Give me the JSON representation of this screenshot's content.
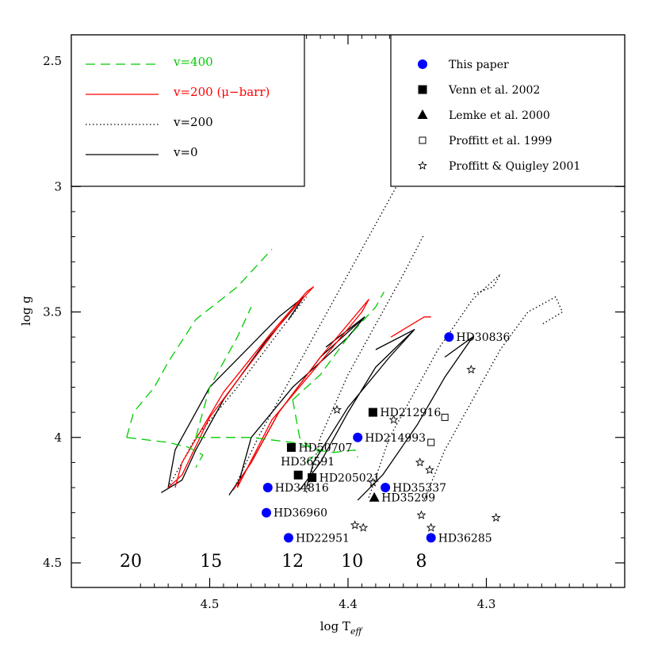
{
  "chart_data": {
    "type": "scatter",
    "xlabel": "log T",
    "xlabel_sub": "eff",
    "ylabel": "log g",
    "xlim": [
      4.6,
      4.2
    ],
    "ylim": [
      4.6,
      2.1
    ],
    "x_reversed": true,
    "y_reversed": true,
    "xticks": [
      4.5,
      4.4,
      4.3
    ],
    "xtick_labels": [
      "4.5",
      "4.4",
      "4.3"
    ],
    "yticks": [
      2.5,
      3,
      3.5,
      4,
      4.5
    ],
    "ytick_labels": [
      "2.5",
      "3",
      "3.5",
      "4",
      "4.5"
    ],
    "grid": false,
    "mass_labels": [
      {
        "text": "20",
        "x": 4.557,
        "y": 4.49
      },
      {
        "text": "15",
        "x": 4.499,
        "y": 4.49
      },
      {
        "text": "12",
        "x": 4.44,
        "y": 4.49
      },
      {
        "text": "10",
        "x": 4.397,
        "y": 4.49
      },
      {
        "text": "8",
        "x": 4.347,
        "y": 4.49
      }
    ],
    "legend_tracks": {
      "position": "top-left",
      "entries": [
        {
          "label": "v=400",
          "color": "#00cc00",
          "style": "dashed"
        },
        {
          "label": "v=200 (μ−barr)",
          "color": "#ff0000",
          "style": "solid"
        },
        {
          "label": "v=200",
          "color": "#000000",
          "style": "dotted"
        },
        {
          "label": "v=0",
          "color": "#000000",
          "style": "solid"
        }
      ]
    },
    "legend_points": {
      "position": "top-right",
      "entries": [
        {
          "label": "This paper",
          "marker": "circle",
          "color": "#0000ff"
        },
        {
          "label": "Venn et al. 2002",
          "marker": "filled-square",
          "color": "#000000"
        },
        {
          "label": "Lemke et al. 2000",
          "marker": "filled-triangle",
          "color": "#000000"
        },
        {
          "label": "Proffitt et al. 1999",
          "marker": "open-square",
          "color": "#000000"
        },
        {
          "label": "Proffitt & Quigley 2001",
          "marker": "star",
          "color": "#000000"
        }
      ]
    },
    "tracks": [
      {
        "group": "v=0",
        "color": "#000000",
        "style": "solid",
        "points": [
          [
            4.535,
            4.22
          ],
          [
            4.52,
            4.17
          ],
          [
            4.51,
            4.05
          ],
          [
            4.49,
            3.85
          ],
          [
            4.46,
            3.62
          ],
          [
            4.432,
            3.44
          ],
          [
            4.45,
            3.52
          ],
          [
            4.5,
            3.8
          ],
          [
            4.525,
            4.05
          ],
          [
            4.53,
            4.2
          ]
        ]
      },
      {
        "group": "v=0",
        "color": "#000000",
        "style": "solid",
        "points": [
          [
            4.443,
            3.53
          ],
          [
            4.432,
            3.44
          ]
        ]
      },
      {
        "group": "v=0",
        "color": "#000000",
        "style": "solid",
        "points": [
          [
            4.486,
            4.23
          ],
          [
            4.47,
            4.1
          ],
          [
            4.45,
            3.9
          ],
          [
            4.42,
            3.68
          ],
          [
            4.388,
            3.52
          ],
          [
            4.4,
            3.6
          ],
          [
            4.44,
            3.8
          ],
          [
            4.47,
            4.0
          ],
          [
            4.48,
            4.2
          ]
        ]
      },
      {
        "group": "v=0",
        "color": "#000000",
        "style": "solid",
        "points": [
          [
            4.416,
            3.64
          ],
          [
            4.388,
            3.52
          ]
        ]
      },
      {
        "group": "v=0",
        "color": "#000000",
        "style": "solid",
        "points": [
          [
            4.435,
            4.21
          ],
          [
            4.42,
            4.1
          ],
          [
            4.4,
            3.9
          ],
          [
            4.38,
            3.72
          ],
          [
            4.352,
            3.57
          ],
          [
            4.37,
            3.68
          ],
          [
            4.4,
            3.88
          ],
          [
            4.425,
            4.1
          ],
          [
            4.43,
            4.2
          ]
        ]
      },
      {
        "group": "v=0",
        "color": "#000000",
        "style": "solid",
        "points": [
          [
            4.38,
            3.65
          ],
          [
            4.352,
            3.57
          ]
        ]
      },
      {
        "group": "v=0",
        "color": "#000000",
        "style": "solid",
        "points": [
          [
            4.393,
            4.25
          ],
          [
            4.375,
            4.15
          ],
          [
            4.35,
            3.95
          ],
          [
            4.33,
            3.76
          ],
          [
            4.31,
            3.6
          ],
          [
            4.33,
            3.68
          ]
        ]
      },
      {
        "group": "v=200",
        "color": "#000000",
        "style": "dotted",
        "points": [
          [
            4.53,
            4.2
          ],
          [
            4.51,
            4.0
          ],
          [
            4.48,
            3.8
          ],
          [
            4.45,
            3.58
          ],
          [
            4.43,
            3.44
          ]
        ]
      },
      {
        "group": "v=200",
        "color": "#000000",
        "style": "dotted",
        "points": [
          [
            4.483,
            4.21
          ],
          [
            4.465,
            4.0
          ],
          [
            4.44,
            3.75
          ],
          [
            4.41,
            3.45
          ],
          [
            4.38,
            3.15
          ],
          [
            4.36,
            2.95
          ]
        ]
      },
      {
        "group": "v=200",
        "color": "#000000",
        "style": "dotted",
        "points": [
          [
            4.43,
            4.22
          ],
          [
            4.42,
            4.0
          ],
          [
            4.4,
            3.75
          ],
          [
            4.38,
            3.55
          ],
          [
            4.36,
            3.35
          ],
          [
            4.345,
            3.19
          ]
        ]
      },
      {
        "group": "v=200",
        "color": "#000000",
        "style": "dotted",
        "points": [
          [
            4.385,
            4.24
          ],
          [
            4.37,
            4.0
          ],
          [
            4.35,
            3.8
          ],
          [
            4.335,
            3.65
          ],
          [
            4.31,
            3.45
          ],
          [
            4.29,
            3.35
          ],
          [
            4.295,
            3.4
          ],
          [
            4.31,
            3.43
          ]
        ]
      },
      {
        "group": "v=200",
        "color": "#000000",
        "style": "dotted",
        "points": [
          [
            4.345,
            4.25
          ],
          [
            4.33,
            4.05
          ],
          [
            4.31,
            3.85
          ],
          [
            4.29,
            3.65
          ],
          [
            4.27,
            3.5
          ],
          [
            4.25,
            3.44
          ],
          [
            4.245,
            3.5
          ],
          [
            4.26,
            3.55
          ]
        ]
      },
      {
        "group": "v=200 (μ−barr)",
        "color": "#ff0000",
        "style": "solid",
        "points": [
          [
            4.53,
            4.2
          ],
          [
            4.52,
            4.15
          ],
          [
            4.5,
            3.92
          ],
          [
            4.47,
            3.7
          ],
          [
            4.445,
            3.52
          ],
          [
            4.425,
            3.4
          ],
          [
            4.43,
            3.42
          ],
          [
            4.455,
            3.58
          ],
          [
            4.49,
            3.82
          ],
          [
            4.52,
            4.1
          ],
          [
            4.525,
            4.2
          ]
        ]
      },
      {
        "group": "v=200 (μ−barr)",
        "color": "#ff0000",
        "style": "solid",
        "points": [
          [
            4.483,
            4.21
          ],
          [
            4.47,
            4.1
          ],
          [
            4.45,
            3.9
          ],
          [
            4.42,
            3.68
          ],
          [
            4.385,
            3.45
          ],
          [
            4.39,
            3.5
          ],
          [
            4.42,
            3.7
          ],
          [
            4.455,
            3.93
          ],
          [
            4.48,
            4.2
          ]
        ]
      },
      {
        "group": "v=200 (μ−barr)",
        "color": "#ff0000",
        "style": "solid",
        "points": [
          [
            4.369,
            3.6
          ],
          [
            4.345,
            3.52
          ],
          [
            4.34,
            3.52
          ]
        ]
      },
      {
        "group": "v=400",
        "color": "#00cc00",
        "style": "dashed",
        "points": [
          [
            4.56,
            4.0
          ],
          [
            4.555,
            3.9
          ],
          [
            4.54,
            3.8
          ],
          [
            4.53,
            3.7
          ],
          [
            4.51,
            3.53
          ],
          [
            4.48,
            3.4
          ],
          [
            4.455,
            3.25
          ]
        ]
      },
      {
        "group": "v=400",
        "color": "#00cc00",
        "style": "dashed",
        "points": [
          [
            4.56,
            4.0
          ],
          [
            4.53,
            4.02
          ],
          [
            4.515,
            4.04
          ],
          [
            4.505,
            4.07
          ],
          [
            4.51,
            4.12
          ]
        ]
      },
      {
        "group": "v=400",
        "color": "#00cc00",
        "style": "dashed",
        "points": [
          [
            4.51,
            4.0
          ],
          [
            4.47,
            4.0
          ],
          [
            4.44,
            4.02
          ],
          [
            4.42,
            4.05
          ],
          [
            4.43,
            4.1
          ]
        ]
      },
      {
        "group": "v=400",
        "color": "#00cc00",
        "style": "dashed",
        "points": [
          [
            4.51,
            4.0
          ],
          [
            4.5,
            3.8
          ],
          [
            4.48,
            3.6
          ],
          [
            4.47,
            3.48
          ]
        ]
      },
      {
        "group": "v=400",
        "color": "#00cc00",
        "style": "dashed",
        "points": [
          [
            4.44,
            3.85
          ],
          [
            4.42,
            3.75
          ],
          [
            4.4,
            3.6
          ],
          [
            4.38,
            3.48
          ],
          [
            4.374,
            3.42
          ]
        ]
      },
      {
        "group": "v=400",
        "color": "#00cc00",
        "style": "dashed",
        "points": [
          [
            4.44,
            3.85
          ],
          [
            4.435,
            4.0
          ],
          [
            4.425,
            4.05
          ],
          [
            4.41,
            4.06
          ],
          [
            4.395,
            4.05
          ],
          [
            4.393,
            4.08
          ]
        ]
      }
    ],
    "series": [
      {
        "name": "This paper",
        "marker": "circle",
        "points": [
          {
            "x": 4.327,
            "y": 3.6,
            "label": "HD30836"
          },
          {
            "x": 4.393,
            "y": 4.0,
            "label": "HD214993"
          },
          {
            "x": 4.373,
            "y": 4.2,
            "label": "HD35337"
          },
          {
            "x": 4.458,
            "y": 4.2,
            "label": "HD34816"
          },
          {
            "x": 4.459,
            "y": 4.3,
            "label": "HD36960"
          },
          {
            "x": 4.443,
            "y": 4.4,
            "label": "HD22951"
          },
          {
            "x": 4.34,
            "y": 4.4,
            "label": "HD36285"
          }
        ]
      },
      {
        "name": "Venn et al. 2002",
        "marker": "filled-square",
        "points": [
          {
            "x": 4.382,
            "y": 3.9,
            "label": "HD212916"
          },
          {
            "x": 4.441,
            "y": 4.04,
            "label": "HD50707"
          },
          {
            "x": 4.436,
            "y": 4.15,
            "label": "HD36591"
          },
          {
            "x": 4.426,
            "y": 4.16,
            "label": "HD205021"
          }
        ]
      },
      {
        "name": "Lemke et al. 2000",
        "marker": "filled-triangle",
        "points": [
          {
            "x": 4.381,
            "y": 4.24,
            "label": "HD35299"
          }
        ]
      },
      {
        "name": "Proffitt et al. 1999",
        "marker": "open-square",
        "points": [
          {
            "x": 4.33,
            "y": 3.92
          },
          {
            "x": 4.34,
            "y": 4.02
          }
        ]
      },
      {
        "name": "Proffitt & Quigley 2001",
        "marker": "star",
        "points": [
          {
            "x": 4.311,
            "y": 3.73
          },
          {
            "x": 4.408,
            "y": 3.89
          },
          {
            "x": 4.367,
            "y": 3.93
          },
          {
            "x": 4.348,
            "y": 4.1
          },
          {
            "x": 4.341,
            "y": 4.13
          },
          {
            "x": 4.382,
            "y": 4.18
          },
          {
            "x": 4.347,
            "y": 4.31
          },
          {
            "x": 4.395,
            "y": 4.35
          },
          {
            "x": 4.389,
            "y": 4.36
          },
          {
            "x": 4.34,
            "y": 4.36
          },
          {
            "x": 4.293,
            "y": 4.32
          }
        ]
      }
    ]
  }
}
